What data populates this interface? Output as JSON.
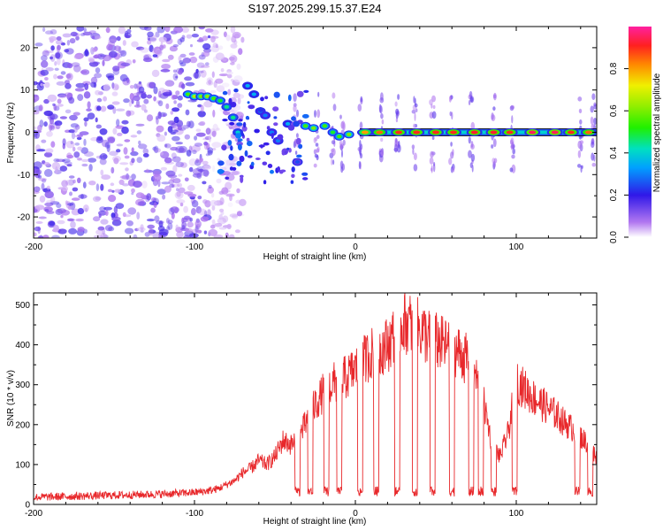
{
  "title": "S197.2025.299.15.37.E24",
  "chart_data": [
    {
      "type": "heatmap",
      "title": "S197.2025.299.15.37.E24",
      "xlabel": "Height of straight line (km)",
      "ylabel": "Frequency (Hz)",
      "xlim": [
        -200,
        150
      ],
      "ylim": [
        -25,
        25
      ],
      "xticks": [
        -200,
        -100,
        0,
        100
      ],
      "yticks": [
        -20,
        -10,
        0,
        10,
        20
      ],
      "colorbar": {
        "label": "Normalized spectral amplitude",
        "range": [
          0,
          1
        ],
        "ticks": [
          0.0,
          0.2,
          0.4,
          0.6,
          0.8
        ],
        "tick_labels": [
          "0.0",
          "0.2",
          "0.4",
          "0.6",
          "0.8"
        ]
      },
      "noise_region_x": [
        -200,
        -90
      ],
      "trace": [
        {
          "x": -104,
          "y": 9,
          "a": 0.55
        },
        {
          "x": -100,
          "y": 8.5,
          "a": 0.65
        },
        {
          "x": -96,
          "y": 8.5,
          "a": 0.6
        },
        {
          "x": -92,
          "y": 8.5,
          "a": 0.62
        },
        {
          "x": -88,
          "y": 8,
          "a": 0.55
        },
        {
          "x": -84,
          "y": 7.5,
          "a": 0.5
        },
        {
          "x": -80,
          "y": 6,
          "a": 0.45
        },
        {
          "x": -76,
          "y": 3.5,
          "a": 0.45
        },
        {
          "x": -73,
          "y": 0,
          "a": 0.4
        },
        {
          "x": -67,
          "y": 11,
          "a": 0.35
        },
        {
          "x": -63,
          "y": 9,
          "a": 0.35
        },
        {
          "x": -59,
          "y": 5,
          "a": 0.3
        },
        {
          "x": -56,
          "y": 4,
          "a": 0.3
        },
        {
          "x": -52,
          "y": 0,
          "a": 0.3
        },
        {
          "x": -48,
          "y": -2,
          "a": 0.3
        },
        {
          "x": -42,
          "y": 2,
          "a": 0.35
        },
        {
          "x": -36,
          "y": -7,
          "a": 0.25
        },
        {
          "x": -31,
          "y": 1.5,
          "a": 0.55
        },
        {
          "x": -26,
          "y": 1,
          "a": 0.6
        },
        {
          "x": -19,
          "y": 1.5,
          "a": 0.55
        },
        {
          "x": -14,
          "y": 0,
          "a": 0.5
        },
        {
          "x": -10,
          "y": -1,
          "a": 0.55
        },
        {
          "x": -4,
          "y": -0.5,
          "a": 0.6
        },
        {
          "x": 6,
          "y": 0,
          "a": 0.8
        },
        {
          "x": 15,
          "y": 0,
          "a": 0.85
        },
        {
          "x": 27,
          "y": 0,
          "a": 0.9
        },
        {
          "x": 38,
          "y": 0,
          "a": 0.9
        },
        {
          "x": 50,
          "y": 0,
          "a": 0.9
        },
        {
          "x": 61,
          "y": 0,
          "a": 0.9
        },
        {
          "x": 74,
          "y": 0,
          "a": 0.92
        },
        {
          "x": 86,
          "y": 0,
          "a": 0.92
        },
        {
          "x": 96,
          "y": 0,
          "a": 0.9
        },
        {
          "x": 110,
          "y": 0,
          "a": 0.95
        },
        {
          "x": 124,
          "y": 0,
          "a": 0.95
        },
        {
          "x": 134,
          "y": 0,
          "a": 0.9
        },
        {
          "x": 145,
          "y": 0,
          "a": 0.85
        }
      ],
      "vertical_streaks_x": [
        -37,
        -24,
        -14,
        -8,
        3,
        16,
        26,
        37,
        48,
        60,
        72,
        86,
        98,
        140,
        148
      ]
    },
    {
      "type": "line",
      "xlabel": "Height of straight line (km)",
      "ylabel": "SNR (10 * v/v)",
      "xlim": [
        -200,
        150
      ],
      "ylim": [
        0,
        530
      ],
      "xticks": [
        -200,
        -100,
        0,
        100
      ],
      "yticks": [
        0,
        100,
        200,
        300,
        400,
        500
      ],
      "series": [
        {
          "name": "SNR",
          "color": "#e8282b",
          "x": [
            -200,
            -180,
            -160,
            -140,
            -120,
            -100,
            -90,
            -85,
            -80,
            -75,
            -70,
            -65,
            -60,
            -55,
            -50,
            -45,
            -40,
            -35,
            -30,
            -25,
            -20,
            -15,
            -10,
            -5,
            0,
            5,
            10,
            15,
            20,
            25,
            30,
            35,
            40,
            45,
            50,
            55,
            60,
            65,
            70,
            75,
            80,
            85,
            90,
            95,
            100,
            105,
            110,
            115,
            120,
            125,
            130,
            135,
            140,
            145,
            150
          ],
          "values": [
            18,
            20,
            22,
            24,
            26,
            30,
            35,
            40,
            50,
            60,
            80,
            90,
            110,
            100,
            120,
            160,
            150,
            170,
            210,
            250,
            280,
            300,
            310,
            320,
            340,
            360,
            380,
            390,
            400,
            430,
            460,
            450,
            440,
            420,
            410,
            400,
            390,
            380,
            360,
            320,
            250,
            150,
            120,
            180,
            310,
            290,
            270,
            255,
            240,
            225,
            205,
            190,
            170,
            150,
            120
          ]
        }
      ],
      "dropouts_x": [
        -36,
        -28,
        -18,
        -10,
        3,
        13,
        26,
        37,
        48,
        60,
        72,
        78,
        86,
        99,
        138,
        146
      ]
    }
  ]
}
